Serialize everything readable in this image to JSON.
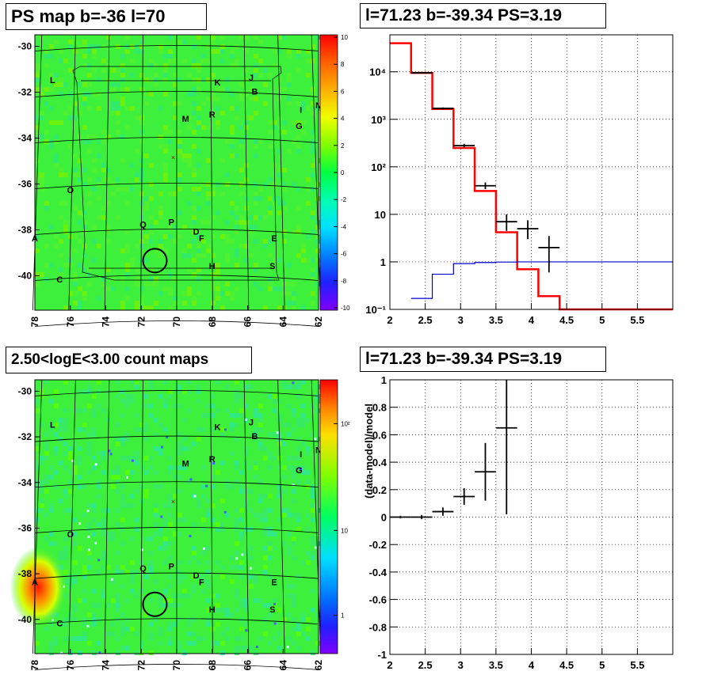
{
  "panels": {
    "map_top": {
      "title": "PS map b=-36 l=70",
      "xticks": [
        "78",
        "76",
        "74",
        "72",
        "70",
        "68",
        "66",
        "64",
        "62"
      ],
      "yticks": [
        "-30",
        "-32",
        "-34",
        "-36",
        "-38",
        "-40"
      ],
      "colorbar_ticks": [
        "10",
        "8",
        "6",
        "4",
        "2",
        "0",
        "-2",
        "-4",
        "-6",
        "-8",
        "-10"
      ],
      "source_labels": [
        "L",
        "K",
        "J",
        "B",
        "N",
        "M",
        "R",
        "I",
        "G",
        "O",
        "P",
        "Q",
        "D",
        "F",
        "E",
        "A",
        "H",
        "S",
        "C"
      ]
    },
    "map_bottom": {
      "title": "2.50<logE<3.00 count maps",
      "xticks": [
        "78",
        "76",
        "74",
        "72",
        "70",
        "68",
        "66",
        "64",
        "62"
      ],
      "yticks": [
        "-30",
        "-32",
        "-34",
        "-36",
        "-38",
        "-40"
      ],
      "colorbar_ticks": [
        "10²",
        "10",
        "1"
      ],
      "source_labels": [
        "L",
        "K",
        "J",
        "B",
        "N",
        "M",
        "R",
        "I",
        "G",
        "O",
        "P",
        "Q",
        "D",
        "F",
        "E",
        "A",
        "H",
        "S",
        "C"
      ]
    },
    "spectrum_top": {
      "title": "l=71.23 b=-39.34 PS=3.19"
    },
    "residual_bottom": {
      "title": "l=71.23 b=-39.34 PS=3.19"
    }
  },
  "chart_data": [
    {
      "type": "heatmap",
      "title": "PS map b=-36 l=70",
      "xlabel": "",
      "ylabel": "",
      "xlim": [
        78,
        62
      ],
      "ylim": [
        -41.5,
        -29.5
      ],
      "zlim": [
        -10,
        10
      ],
      "colorbar_ticks": [
        10,
        8,
        6,
        4,
        2,
        0,
        -2,
        -4,
        -6,
        -8,
        -10
      ],
      "dominant_value": 0.5,
      "source_circle": {
        "l": 71.23,
        "b": -39.34
      },
      "sources": [
        {
          "name": "L",
          "l": 77.0,
          "b": -31.6
        },
        {
          "name": "K",
          "l": 67.7,
          "b": -31.7
        },
        {
          "name": "J",
          "l": 65.8,
          "b": -31.5
        },
        {
          "name": "B",
          "l": 65.6,
          "b": -32.1
        },
        {
          "name": "N",
          "l": 62.0,
          "b": -32.7
        },
        {
          "name": "M",
          "l": 69.5,
          "b": -33.3
        },
        {
          "name": "R",
          "l": 68.0,
          "b": -33.1
        },
        {
          "name": "I",
          "l": 63.0,
          "b": -32.9
        },
        {
          "name": "G",
          "l": 63.1,
          "b": -33.6
        },
        {
          "name": "O",
          "l": 76.0,
          "b": -36.4
        },
        {
          "name": "P",
          "l": 70.3,
          "b": -37.8
        },
        {
          "name": "Q",
          "l": 71.9,
          "b": -37.9
        },
        {
          "name": "D",
          "l": 68.9,
          "b": -38.2
        },
        {
          "name": "F",
          "l": 68.6,
          "b": -38.5
        },
        {
          "name": "E",
          "l": 64.5,
          "b": -38.5
        },
        {
          "name": "A",
          "l": 78.0,
          "b": -38.5
        },
        {
          "name": "H",
          "l": 68.0,
          "b": -39.7
        },
        {
          "name": "S",
          "l": 64.6,
          "b": -39.7
        },
        {
          "name": "C",
          "l": 76.6,
          "b": -40.3
        }
      ]
    },
    {
      "type": "heatmap",
      "title": "2.50<logE<3.00 count maps",
      "xlabel": "",
      "ylabel": "",
      "xlim": [
        78,
        62
      ],
      "ylim": [
        -41.5,
        -29.5
      ],
      "zlim": [
        0.3,
        300
      ],
      "colorbar_ticks": [
        "10²",
        "10",
        "1"
      ],
      "bright_spot": {
        "l": 77.8,
        "b": -38.6
      },
      "source_circle": {
        "l": 71.23,
        "b": -39.34
      }
    },
    {
      "type": "line",
      "title": "l=71.23 b=-39.34 PS=3.19",
      "xlabel": "",
      "ylabel": "",
      "xlim": [
        2,
        6
      ],
      "ylim": [
        0.1,
        60000
      ],
      "yscale": "log",
      "xticks": [
        2,
        2.5,
        3,
        3.5,
        4,
        4.5,
        5,
        5.5
      ],
      "yticks": [
        {
          "v": 10000,
          "label": "10⁴"
        },
        {
          "v": 1000,
          "label": "10³"
        },
        {
          "v": 100,
          "label": "10²"
        },
        {
          "v": 10,
          "label": "10"
        },
        {
          "v": 1,
          "label": "1"
        },
        {
          "v": 0.1,
          "label": "10⁻¹"
        }
      ],
      "grid": true,
      "series": [
        {
          "kind": "step",
          "color": "#ff0000",
          "edges": [
            2,
            2.3,
            2.6,
            2.9,
            3.2,
            3.5,
            3.8,
            4.1,
            4.4,
            6
          ],
          "values": [
            40000,
            9500,
            1650,
            250,
            31,
            4.2,
            0.7,
            0.19,
            0.1
          ]
        },
        {
          "kind": "step",
          "color": "#0000cc",
          "edges": [
            2.3,
            2.6,
            2.9,
            3.2,
            3.5,
            3.8,
            6
          ],
          "values": [
            0.17,
            0.55,
            0.92,
            0.97,
            0.99,
            1.0
          ]
        },
        {
          "kind": "errorbar",
          "color": "#000000",
          "points": [
            {
              "x": 2.45,
              "y": 9500,
              "xerr": 0.15,
              "ylo": 9300,
              "yhi": 9700
            },
            {
              "x": 2.75,
              "y": 1700,
              "xerr": 0.15,
              "ylo": 1620,
              "yhi": 1780
            },
            {
              "x": 3.05,
              "y": 280,
              "xerr": 0.15,
              "ylo": 255,
              "yhi": 305
            },
            {
              "x": 3.35,
              "y": 40,
              "xerr": 0.15,
              "ylo": 34,
              "yhi": 47
            },
            {
              "x": 3.65,
              "y": 7,
              "xerr": 0.15,
              "ylo": 4.5,
              "yhi": 10
            },
            {
              "x": 3.95,
              "y": 5,
              "xerr": 0.15,
              "ylo": 3,
              "yhi": 7.5
            },
            {
              "x": 4.25,
              "y": 2,
              "xerr": 0.15,
              "ylo": 0.6,
              "yhi": 3.5
            }
          ]
        }
      ]
    },
    {
      "type": "scatter",
      "title": "l=71.23 b=-39.34 PS=3.19",
      "xlabel": "",
      "ylabel": "(data-model)/model",
      "xlim": [
        2,
        6
      ],
      "ylim": [
        -1,
        1
      ],
      "xticks": [
        2,
        2.5,
        3,
        3.5,
        4,
        4.5,
        5,
        5.5
      ],
      "yticks": [
        1,
        0.8,
        0.6,
        0.4,
        0.2,
        0,
        -0.2,
        -0.4,
        -0.6,
        -0.8,
        -1
      ],
      "grid": true,
      "points": [
        {
          "x": 2.15,
          "y": 0.0,
          "xerr": 0.15,
          "ylo": -0.01,
          "yhi": 0.01
        },
        {
          "x": 2.45,
          "y": 0.0,
          "xerr": 0.15,
          "ylo": -0.015,
          "yhi": 0.015
        },
        {
          "x": 2.75,
          "y": 0.04,
          "xerr": 0.15,
          "ylo": 0.01,
          "yhi": 0.07
        },
        {
          "x": 3.05,
          "y": 0.15,
          "xerr": 0.15,
          "ylo": 0.09,
          "yhi": 0.21
        },
        {
          "x": 3.35,
          "y": 0.33,
          "xerr": 0.15,
          "ylo": 0.12,
          "yhi": 0.54
        },
        {
          "x": 3.65,
          "y": 0.65,
          "xerr": 0.15,
          "ylo": 0.02,
          "yhi": 1.0
        }
      ]
    }
  ],
  "colors": {
    "map_background": "#3cf03c",
    "source_circle": "#000000",
    "model_line": "#ff0000",
    "background_line": "#0000cc",
    "data_points": "#000000"
  }
}
